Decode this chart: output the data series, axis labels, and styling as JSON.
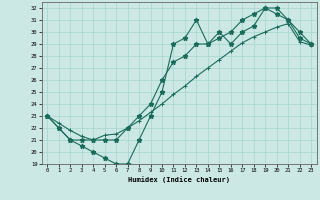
{
  "xlabel": "Humidex (Indice chaleur)",
  "xlim": [
    -0.5,
    23.5
  ],
  "ylim": [
    19,
    32.5
  ],
  "yticks": [
    19,
    20,
    21,
    22,
    23,
    24,
    25,
    26,
    27,
    28,
    29,
    30,
    31,
    32
  ],
  "xticks": [
    0,
    1,
    2,
    3,
    4,
    5,
    6,
    7,
    8,
    9,
    10,
    11,
    12,
    13,
    14,
    15,
    16,
    17,
    18,
    19,
    20,
    21,
    22,
    23
  ],
  "line_color": "#1a6b5a",
  "bg_color": "#cce8e4",
  "grid_color": "#a8d4cf",
  "line1_x": [
    0,
    1,
    2,
    3,
    4,
    5,
    6,
    7,
    8,
    9,
    10,
    11,
    12,
    13,
    14,
    15,
    16,
    17,
    18,
    19,
    20,
    21,
    22,
    23
  ],
  "line1_y": [
    23,
    22,
    21,
    20.5,
    20,
    19.5,
    19,
    19,
    21,
    23,
    25,
    29,
    29.5,
    31,
    29,
    30,
    29,
    30,
    30.5,
    32,
    31.5,
    31,
    30,
    29
  ],
  "line2_x": [
    0,
    1,
    2,
    3,
    4,
    5,
    6,
    7,
    8,
    9,
    10,
    11,
    12,
    13,
    14,
    15,
    16,
    17,
    18,
    19,
    20,
    21,
    22,
    23
  ],
  "line2_y": [
    23,
    22,
    21,
    21,
    21,
    21,
    21,
    22,
    23,
    24,
    26,
    27.5,
    28,
    29,
    29,
    29.5,
    30,
    31,
    31.5,
    32,
    32,
    31,
    29.5,
    29
  ],
  "line3_x": [
    0,
    1,
    2,
    3,
    4,
    5,
    6,
    7,
    8,
    9,
    10,
    11,
    12,
    13,
    14,
    15,
    16,
    17,
    18,
    19,
    20,
    21,
    22,
    23
  ],
  "line3_y": [
    23,
    22.4,
    21.8,
    21.3,
    21.0,
    21.4,
    21.5,
    22.0,
    22.6,
    23.3,
    24.0,
    24.8,
    25.5,
    26.3,
    27.0,
    27.7,
    28.4,
    29.1,
    29.6,
    30.0,
    30.4,
    30.7,
    29.2,
    28.9
  ]
}
